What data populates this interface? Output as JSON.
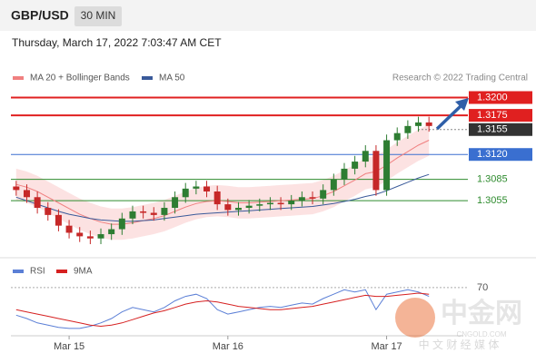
{
  "header": {
    "symbol": "GBP/USD",
    "timeframe": "30 MIN",
    "timestamp": "Thursday, March 17, 2022 7:03:47 AM CET",
    "credit": "Research © 2022 Trading Central"
  },
  "watermark": {
    "brand": "中金网",
    "site": "CNGOLD.COM",
    "tagline": "中 文 财 经 媒 体"
  },
  "chart_data": [
    {
      "type": "candlestick",
      "ylim": [
        1.298,
        1.3258
      ],
      "up_color": "#2e7d32",
      "down_color": "#c62828",
      "categories": [
        null,
        null,
        null,
        null,
        null,
        "Mar 15",
        null,
        null,
        null,
        null,
        null,
        null,
        null,
        null,
        null,
        null,
        null,
        null,
        null,
        null,
        "Mar 16",
        null,
        null,
        null,
        null,
        null,
        null,
        null,
        null,
        null,
        null,
        null,
        null,
        null,
        null,
        "Mar 17",
        null,
        null,
        null,
        null
      ],
      "open": [
        1.3075,
        1.307,
        1.306,
        1.3045,
        1.3035,
        1.302,
        1.301,
        1.3005,
        1.3002,
        1.3008,
        1.3015,
        1.303,
        1.304,
        1.3038,
        1.3035,
        1.3045,
        1.306,
        1.3072,
        1.3075,
        1.3068,
        1.305,
        1.3042,
        1.3045,
        1.3048,
        1.305,
        1.3052,
        1.305,
        1.3055,
        1.306,
        1.3058,
        1.307,
        1.3085,
        1.31,
        1.311,
        1.3125,
        1.307,
        1.314,
        1.315,
        1.316,
        1.3165
      ],
      "high": [
        1.3083,
        1.3078,
        1.3068,
        1.3053,
        1.3043,
        1.3028,
        1.3018,
        1.3013,
        1.3016,
        1.3023,
        1.3038,
        1.3048,
        1.3048,
        1.3046,
        1.3053,
        1.3068,
        1.308,
        1.3083,
        1.3083,
        1.3076,
        1.3058,
        1.3053,
        1.3056,
        1.3058,
        1.306,
        1.306,
        1.3063,
        1.3068,
        1.3068,
        1.3078,
        1.3093,
        1.3108,
        1.3118,
        1.3133,
        1.3133,
        1.3148,
        1.3158,
        1.3168,
        1.3173,
        1.3173
      ],
      "low": [
        1.3062,
        1.3052,
        1.3037,
        1.3027,
        1.3012,
        1.3002,
        1.2997,
        1.2994,
        1.2994,
        1.3,
        1.3007,
        1.3022,
        1.303,
        1.3027,
        1.3027,
        1.3037,
        1.3052,
        1.3064,
        1.306,
        1.3042,
        1.3034,
        1.3034,
        1.3037,
        1.304,
        1.3042,
        1.3042,
        1.3042,
        1.3047,
        1.305,
        1.305,
        1.3062,
        1.3077,
        1.3092,
        1.3102,
        1.3062,
        1.3062,
        1.3132,
        1.3142,
        1.3152,
        1.3152
      ],
      "close": [
        1.307,
        1.306,
        1.3045,
        1.3035,
        1.302,
        1.301,
        1.3005,
        1.3002,
        1.3008,
        1.3015,
        1.303,
        1.304,
        1.3038,
        1.3035,
        1.3045,
        1.306,
        1.3072,
        1.3075,
        1.3068,
        1.305,
        1.3042,
        1.3045,
        1.3048,
        1.305,
        1.3052,
        1.305,
        1.3055,
        1.306,
        1.3058,
        1.307,
        1.3085,
        1.31,
        1.311,
        1.3125,
        1.307,
        1.314,
        1.315,
        1.316,
        1.3165,
        1.316
      ],
      "band": {
        "color": "#fbd5d5",
        "upper": [
          1.31,
          1.3096,
          1.309,
          1.3082,
          1.3074,
          1.3066,
          1.3058,
          1.3052,
          1.3047,
          1.3044,
          1.3044,
          1.3046,
          1.3049,
          1.3052,
          1.3056,
          1.3062,
          1.3068,
          1.3073,
          1.3076,
          1.3077,
          1.3076,
          1.3074,
          1.3074,
          1.3075,
          1.3076,
          1.3077,
          1.3078,
          1.3079,
          1.308,
          1.3084,
          1.309,
          1.3098,
          1.3106,
          1.3115,
          1.3118,
          1.3127,
          1.3137,
          1.3146,
          1.3155,
          1.3162
        ],
        "lower": [
          1.3056,
          1.3052,
          1.3046,
          1.3038,
          1.303,
          1.3022,
          1.3014,
          1.3008,
          1.3003,
          1.3,
          1.3,
          1.3002,
          1.3005,
          1.3008,
          1.3012,
          1.3018,
          1.3024,
          1.3029,
          1.3032,
          1.3033,
          1.3032,
          1.303,
          1.303,
          1.3031,
          1.3032,
          1.3033,
          1.3034,
          1.3035,
          1.3036,
          1.304,
          1.3046,
          1.3054,
          1.3062,
          1.3071,
          1.3074,
          1.3083,
          1.3093,
          1.3102,
          1.3111,
          1.3118
        ]
      },
      "series": [
        {
          "name": "MA 20 + Bollinger Bands",
          "color": "#f08080",
          "values": [
            1.3078,
            1.3074,
            1.3068,
            1.306,
            1.3052,
            1.3044,
            1.3036,
            1.303,
            1.3025,
            1.3022,
            1.3022,
            1.3024,
            1.3027,
            1.303,
            1.3034,
            1.304,
            1.3046,
            1.3051,
            1.3054,
            1.3055,
            1.3054,
            1.3052,
            1.3052,
            1.3053,
            1.3054,
            1.3055,
            1.3056,
            1.3057,
            1.3058,
            1.3062,
            1.3068,
            1.3076,
            1.3084,
            1.3093,
            1.3096,
            1.3105,
            1.3115,
            1.3124,
            1.3133,
            1.314
          ]
        },
        {
          "name": "MA 50",
          "color": "#3a5a9a",
          "values": [
            1.306,
            1.3055,
            1.305,
            1.3045,
            1.304,
            1.3036,
            1.3033,
            1.303,
            1.3028,
            1.3027,
            1.3026,
            1.3026,
            1.3027,
            1.3028,
            1.303,
            1.3032,
            1.3034,
            1.3036,
            1.3037,
            1.3038,
            1.3039,
            1.304,
            1.3041,
            1.3042,
            1.3043,
            1.3044,
            1.3045,
            1.3046,
            1.3047,
            1.3049,
            1.3051,
            1.3054,
            1.3057,
            1.3061,
            1.3064,
            1.3069,
            1.3075,
            1.3081,
            1.3087,
            1.3092
          ]
        }
      ],
      "levels": [
        {
          "value": 1.32,
          "label": "1.3200",
          "color": "#e02020",
          "line": "solid",
          "boxed": true
        },
        {
          "value": 1.3175,
          "label": "1.3175",
          "color": "#e02020",
          "line": "solid",
          "boxed": true
        },
        {
          "value": 1.3155,
          "label": "1.3155",
          "color": "#333333",
          "line": "dotted",
          "boxed": true
        },
        {
          "value": 1.312,
          "label": "1.3120",
          "color": "#3a6fd0",
          "line": "solid",
          "boxed": true
        },
        {
          "value": 1.3085,
          "label": "1.3085",
          "color": "#2e8b2e",
          "line": "solid",
          "boxed": false
        },
        {
          "value": 1.3055,
          "label": "1.3055",
          "color": "#2e8b2e",
          "line": "solid",
          "boxed": false
        }
      ]
    },
    {
      "type": "line",
      "ylim": [
        28,
        74
      ],
      "yticks": [
        70
      ],
      "series": [
        {
          "name": "RSI",
          "color": "#5b7fd6",
          "values": [
            45,
            42,
            38,
            36,
            34,
            33,
            33,
            35,
            38,
            42,
            48,
            52,
            50,
            48,
            52,
            58,
            62,
            64,
            60,
            50,
            46,
            48,
            50,
            52,
            53,
            52,
            54,
            56,
            55,
            60,
            64,
            68,
            66,
            68,
            50,
            64,
            66,
            68,
            66,
            62
          ]
        },
        {
          "name": "9MA",
          "color": "#d62020",
          "values": [
            50,
            48,
            46,
            44,
            42,
            40,
            38,
            36,
            35,
            36,
            38,
            41,
            44,
            47,
            49,
            52,
            55,
            57,
            58,
            57,
            55,
            53,
            52,
            51,
            50,
            50,
            51,
            52,
            53,
            55,
            57,
            59,
            61,
            63,
            62,
            62,
            63,
            64,
            65,
            64
          ]
        }
      ]
    }
  ]
}
